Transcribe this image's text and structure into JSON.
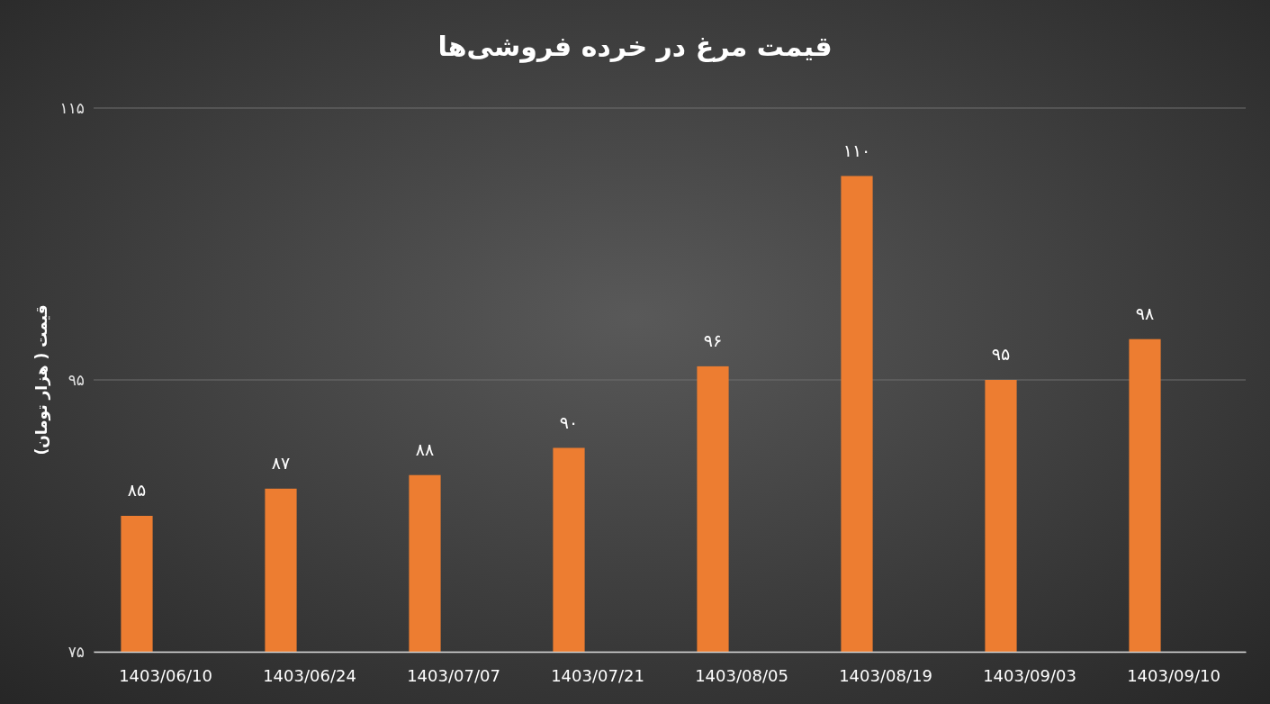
{
  "chart_data": {
    "type": "bar",
    "title": "قیمت مرغ در خرده فروشی‌ها",
    "ylabel": "قیمت ( هزار تومان)",
    "categories": [
      "1403/06/10",
      "1403/06/24",
      "1403/07/07",
      "1403/07/21",
      "1403/08/05",
      "1403/08/19",
      "1403/09/03",
      "1403/09/10"
    ],
    "values": [
      85,
      87,
      88,
      90,
      96,
      110,
      95,
      98
    ],
    "value_labels": [
      "۸۵",
      "۸۷",
      "۸۸",
      "۹۰",
      "۹۶",
      "۱۱۰",
      "۹۵",
      "۹۸"
    ],
    "color": "#ed7d31",
    "ylim": [
      75,
      115
    ],
    "yticks": [
      {
        "value": 75,
        "label": "۷۵"
      },
      {
        "value": 95,
        "label": "۹۵"
      },
      {
        "value": 115,
        "label": "۱۱۵"
      }
    ],
    "grid": "y"
  }
}
